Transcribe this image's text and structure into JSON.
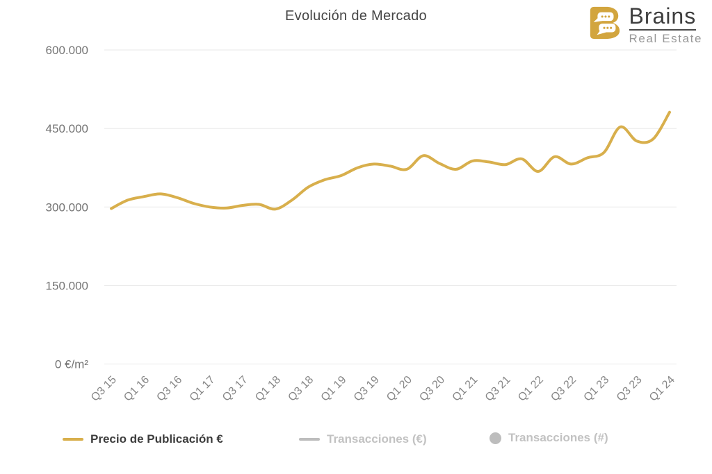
{
  "header": {
    "title": "Evolución de Mercado"
  },
  "logo": {
    "brand": "Brains",
    "tagline": "Real Estate"
  },
  "colors": {
    "accent_gold": "#D8AF4C",
    "logo_gold": "#D2A53E",
    "grid": "#E8E8E8",
    "y_axis_text": "#757575",
    "x_axis_text": "#878787",
    "title_text": "#464646",
    "legend_active_text": "#3D3D3D",
    "legend_inactive": "#C2C2C2",
    "legend_inactive_marker": "#BDBDBD"
  },
  "chart_data": {
    "type": "line",
    "title": "Evolución de Mercado",
    "unit": "€/m²",
    "grid": "horizontal",
    "legend_position": "bottom",
    "ylim": [
      0,
      600000
    ],
    "categories": [
      "Q3 15",
      "Q4 15",
      "Q1 16",
      "Q2 16",
      "Q3 16",
      "Q4 16",
      "Q1 17",
      "Q2 17",
      "Q3 17",
      "Q4 17",
      "Q1 18",
      "Q2 18",
      "Q3 18",
      "Q4 18",
      "Q1 19",
      "Q2 19",
      "Q3 19",
      "Q4 19",
      "Q1 20",
      "Q2 20",
      "Q3 20",
      "Q4 20",
      "Q1 21",
      "Q2 21",
      "Q3 21",
      "Q4 21",
      "Q1 22",
      "Q2 22",
      "Q3 22",
      "Q4 22",
      "Q1 23",
      "Q2 23",
      "Q3 23",
      "Q4 23",
      "Q1 24"
    ],
    "x_axis_tick_labels": [
      "Q3 15",
      "Q1 16",
      "Q3 16",
      "Q1 17",
      "Q3 17",
      "Q1 18",
      "Q3 18",
      "Q1 19",
      "Q3 19",
      "Q1 20",
      "Q3 20",
      "Q1 21",
      "Q3 21",
      "Q1 22",
      "Q3 22",
      "Q1 23",
      "Q3 23",
      "Q1 24"
    ],
    "y_axis_ticks": [
      {
        "value": 600000,
        "label": "600.000"
      },
      {
        "value": 450000,
        "label": "450.000"
      },
      {
        "value": 300000,
        "label": "300.000"
      },
      {
        "value": 150000,
        "label": "150.000"
      },
      {
        "value": 0,
        "label": "0 €/m²"
      }
    ],
    "series": [
      {
        "name": "Precio de Publicación €",
        "color": "#D8AF4C",
        "marker": "line",
        "visible": true,
        "values": [
          297000,
          313000,
          320000,
          325000,
          318000,
          307000,
          300000,
          298000,
          303000,
          305000,
          296000,
          313000,
          338000,
          352000,
          360000,
          375000,
          382000,
          378000,
          372000,
          398000,
          383000,
          372000,
          388000,
          386000,
          381000,
          392000,
          368000,
          396000,
          382000,
          394000,
          404000,
          453000,
          426000,
          430000,
          481000
        ]
      },
      {
        "name": "Transacciones (€)",
        "color": "#BDBDBD",
        "marker": "line",
        "visible": false,
        "values": []
      },
      {
        "name": "Transacciones (#)",
        "color": "#BDBDBD",
        "marker": "circle",
        "visible": false,
        "values": []
      }
    ]
  }
}
